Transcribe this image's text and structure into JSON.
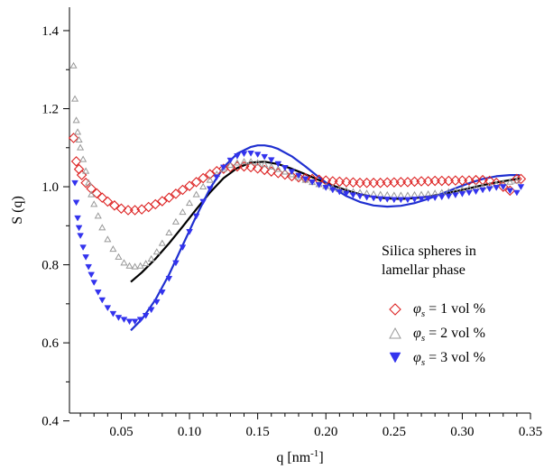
{
  "chart_data": {
    "type": "scatter",
    "xlabel": "q [nm",
    "xlabel_sup": "-1",
    "xlabel_end": "]",
    "ylabel": "S (q)",
    "xlim": [
      0.012,
      0.35
    ],
    "ylim": [
      0.42,
      1.46
    ],
    "x_ticks": [
      0.05,
      0.1,
      0.15,
      0.2,
      0.25,
      0.3,
      0.35
    ],
    "x_tick_labels": [
      "0.05",
      "0.10",
      "0.15",
      "0.20",
      "0.25",
      "0.30",
      "0.35"
    ],
    "y_ticks": [
      0.4,
      0.6,
      0.8,
      1.0,
      1.2,
      1.4
    ],
    "y_tick_labels": [
      "0.4",
      "0.6",
      "0.8",
      "1.0",
      "1.2",
      "1.4"
    ],
    "grid": false,
    "annotation": [
      "Silica spheres in",
      "lamellar phase"
    ],
    "legend_placement": "right",
    "series": [
      {
        "legend": [
          "φ",
          "s",
          " = 1 vol %"
        ],
        "marker": "open-diamond",
        "color": "#dd2222",
        "x": [
          0.015,
          0.017,
          0.019,
          0.021,
          0.024,
          0.028,
          0.032,
          0.036,
          0.04,
          0.045,
          0.05,
          0.055,
          0.06,
          0.065,
          0.07,
          0.075,
          0.08,
          0.085,
          0.09,
          0.095,
          0.1,
          0.105,
          0.11,
          0.115,
          0.12,
          0.125,
          0.13,
          0.135,
          0.14,
          0.145,
          0.15,
          0.155,
          0.16,
          0.165,
          0.17,
          0.175,
          0.18,
          0.185,
          0.19,
          0.195,
          0.2,
          0.205,
          0.21,
          0.215,
          0.22,
          0.225,
          0.23,
          0.235,
          0.24,
          0.245,
          0.25,
          0.255,
          0.26,
          0.265,
          0.27,
          0.275,
          0.28,
          0.285,
          0.29,
          0.295,
          0.3,
          0.305,
          0.31,
          0.315,
          0.32,
          0.325,
          0.33,
          0.335,
          0.34,
          0.343
        ],
        "y": [
          1.125,
          1.065,
          1.045,
          1.03,
          1.01,
          0.995,
          0.983,
          0.972,
          0.962,
          0.952,
          0.944,
          0.94,
          0.94,
          0.942,
          0.948,
          0.955,
          0.963,
          0.972,
          0.982,
          0.992,
          1.002,
          1.012,
          1.022,
          1.032,
          1.04,
          1.046,
          1.05,
          1.052,
          1.052,
          1.05,
          1.047,
          1.043,
          1.039,
          1.035,
          1.031,
          1.027,
          1.024,
          1.022,
          1.02,
          1.018,
          1.016,
          1.014,
          1.013,
          1.012,
          1.011,
          1.01,
          1.01,
          1.01,
          1.01,
          1.011,
          1.011,
          1.012,
          1.012,
          1.013,
          1.014,
          1.014,
          1.015,
          1.015,
          1.015,
          1.016,
          1.016,
          1.016,
          1.017,
          1.017,
          1.015,
          1.01,
          1.0,
          0.99,
          1.02,
          1.02
        ]
      },
      {
        "legend": [
          "φ",
          "s",
          " = 2 vol %"
        ],
        "marker": "open-triangle",
        "color": "#999999",
        "x": [
          0.015,
          0.016,
          0.017,
          0.018,
          0.019,
          0.02,
          0.022,
          0.024,
          0.026,
          0.028,
          0.03,
          0.033,
          0.036,
          0.04,
          0.044,
          0.048,
          0.052,
          0.056,
          0.06,
          0.064,
          0.068,
          0.072,
          0.076,
          0.08,
          0.085,
          0.09,
          0.095,
          0.1,
          0.105,
          0.11,
          0.115,
          0.12,
          0.125,
          0.13,
          0.135,
          0.14,
          0.145,
          0.15,
          0.155,
          0.16,
          0.165,
          0.17,
          0.175,
          0.18,
          0.185,
          0.19,
          0.195,
          0.2,
          0.205,
          0.21,
          0.215,
          0.22,
          0.225,
          0.23,
          0.235,
          0.24,
          0.245,
          0.25,
          0.255,
          0.26,
          0.265,
          0.27,
          0.275,
          0.28,
          0.285,
          0.29,
          0.295,
          0.3,
          0.305,
          0.31,
          0.315,
          0.32,
          0.325,
          0.33,
          0.335,
          0.34
        ],
        "y": [
          1.31,
          1.225,
          1.17,
          1.14,
          1.12,
          1.1,
          1.07,
          1.04,
          1.01,
          0.98,
          0.955,
          0.925,
          0.895,
          0.865,
          0.84,
          0.82,
          0.805,
          0.797,
          0.795,
          0.797,
          0.803,
          0.815,
          0.833,
          0.855,
          0.882,
          0.91,
          0.935,
          0.958,
          0.98,
          1.0,
          1.017,
          1.032,
          1.045,
          1.055,
          1.061,
          1.064,
          1.064,
          1.061,
          1.057,
          1.051,
          1.045,
          1.038,
          1.031,
          1.024,
          1.017,
          1.011,
          1.006,
          1.001,
          0.997,
          0.993,
          0.99,
          0.987,
          0.985,
          0.983,
          0.981,
          0.98,
          0.979,
          0.978,
          0.978,
          0.978,
          0.979,
          0.98,
          0.981,
          0.983,
          0.985,
          0.987,
          0.989,
          0.992,
          0.995,
          0.998,
          1.0,
          1.003,
          1.006,
          1.009,
          1.012,
          1.015
        ]
      },
      {
        "legend": [
          "φ",
          "s",
          " = 3 vol %"
        ],
        "marker": "filled-triangle-down",
        "color": "#3333ee",
        "x": [
          0.016,
          0.017,
          0.018,
          0.019,
          0.02,
          0.022,
          0.024,
          0.026,
          0.028,
          0.03,
          0.033,
          0.036,
          0.04,
          0.044,
          0.048,
          0.052,
          0.056,
          0.06,
          0.064,
          0.068,
          0.072,
          0.076,
          0.08,
          0.085,
          0.09,
          0.095,
          0.1,
          0.105,
          0.11,
          0.115,
          0.12,
          0.125,
          0.13,
          0.135,
          0.14,
          0.145,
          0.15,
          0.155,
          0.16,
          0.165,
          0.17,
          0.175,
          0.18,
          0.185,
          0.19,
          0.195,
          0.2,
          0.205,
          0.21,
          0.215,
          0.22,
          0.225,
          0.23,
          0.235,
          0.24,
          0.245,
          0.25,
          0.255,
          0.26,
          0.265,
          0.27,
          0.275,
          0.28,
          0.285,
          0.29,
          0.295,
          0.3,
          0.305,
          0.31,
          0.315,
          0.32,
          0.325,
          0.33,
          0.335,
          0.34,
          0.343
        ],
        "y": [
          1.01,
          0.96,
          0.92,
          0.895,
          0.875,
          0.845,
          0.82,
          0.795,
          0.775,
          0.755,
          0.73,
          0.71,
          0.69,
          0.675,
          0.665,
          0.66,
          0.655,
          0.655,
          0.66,
          0.67,
          0.685,
          0.705,
          0.73,
          0.765,
          0.805,
          0.845,
          0.885,
          0.925,
          0.962,
          0.995,
          1.025,
          1.05,
          1.068,
          1.079,
          1.085,
          1.086,
          1.083,
          1.077,
          1.069,
          1.059,
          1.049,
          1.039,
          1.029,
          1.02,
          1.012,
          1.005,
          0.998,
          0.992,
          0.987,
          0.983,
          0.979,
          0.976,
          0.973,
          0.971,
          0.969,
          0.968,
          0.967,
          0.967,
          0.967,
          0.968,
          0.969,
          0.97,
          0.972,
          0.974,
          0.976,
          0.979,
          0.982,
          0.985,
          0.988,
          0.992,
          0.995,
          0.998,
          1.0,
          0.99,
          0.985,
          1.0
        ]
      }
    ],
    "fit_curves": [
      {
        "color": "#000000",
        "x": [
          0.057,
          0.065,
          0.075,
          0.085,
          0.095,
          0.105,
          0.115,
          0.125,
          0.135,
          0.145,
          0.155,
          0.165,
          0.175,
          0.185,
          0.195,
          0.205,
          0.215,
          0.225,
          0.235,
          0.245,
          0.255,
          0.265,
          0.275,
          0.285,
          0.295,
          0.305,
          0.315,
          0.325,
          0.335,
          0.342
        ],
        "y": [
          0.756,
          0.78,
          0.815,
          0.855,
          0.898,
          0.942,
          0.985,
          1.022,
          1.048,
          1.062,
          1.064,
          1.058,
          1.046,
          1.032,
          1.017,
          1.003,
          0.991,
          0.981,
          0.974,
          0.97,
          0.969,
          0.971,
          0.975,
          0.981,
          0.988,
          0.996,
          1.004,
          1.011,
          1.017,
          1.021
        ]
      },
      {
        "color": "#1f2fd0",
        "x": [
          0.057,
          0.065,
          0.075,
          0.085,
          0.095,
          0.105,
          0.115,
          0.125,
          0.135,
          0.145,
          0.15,
          0.155,
          0.16,
          0.165,
          0.175,
          0.185,
          0.195,
          0.205,
          0.215,
          0.225,
          0.235,
          0.245,
          0.255,
          0.265,
          0.275,
          0.285,
          0.295,
          0.305,
          0.315,
          0.325,
          0.335,
          0.342
        ],
        "y": [
          0.632,
          0.66,
          0.71,
          0.775,
          0.85,
          0.925,
          0.995,
          1.05,
          1.085,
          1.102,
          1.106,
          1.106,
          1.103,
          1.097,
          1.078,
          1.052,
          1.024,
          0.998,
          0.976,
          0.961,
          0.952,
          0.949,
          0.951,
          0.958,
          0.969,
          0.982,
          0.996,
          1.009,
          1.02,
          1.027,
          1.03,
          1.03
        ]
      }
    ]
  }
}
